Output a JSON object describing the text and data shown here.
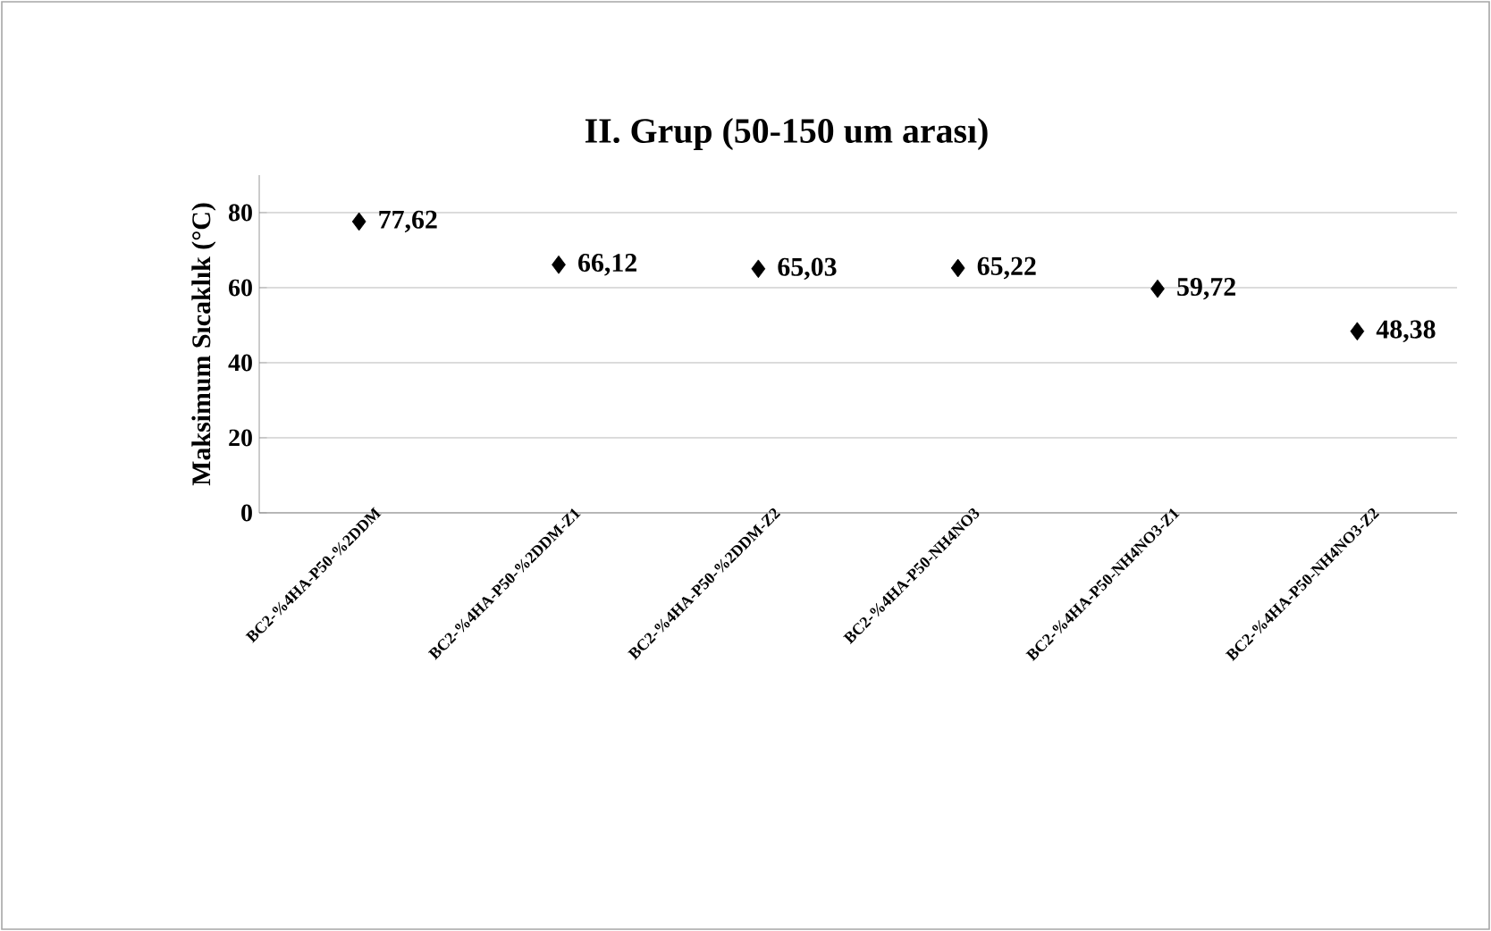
{
  "chart_data": {
    "type": "scatter",
    "title": "II. Grup (50-150 um arası)",
    "ylabel": "Maksimum Sıcaklık (°C)",
    "categories": [
      "BC2-%4HA-P50-%2DDM",
      "BC2-%4HA-P50-%2DDM-Z1",
      "BC2-%4HA-P50-%2DDM-Z2",
      "BC2-%4HA-P50-NH4NO3",
      "BC2-%4HA-P50-NH4NO3-Z1",
      "BC2-%4HA-P50-NH4NO3-Z2"
    ],
    "values": [
      77.62,
      66.12,
      65.03,
      65.22,
      59.72,
      48.38
    ],
    "value_labels": [
      "77,62",
      "66,12",
      "65,03",
      "65,22",
      "59,72",
      "48,38"
    ],
    "color": "#000000",
    "marker": "diamond",
    "ylim": [
      0,
      90
    ],
    "yticks": [
      0,
      20,
      40,
      60,
      80
    ],
    "grid": "y"
  }
}
